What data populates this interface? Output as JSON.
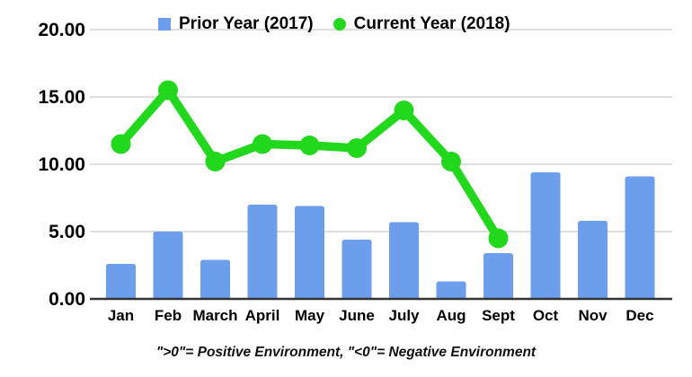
{
  "chart_data": {
    "type": "bar",
    "subtype": "combo-bar-line",
    "categories": [
      "Jan",
      "Feb",
      "March",
      "April",
      "May",
      "June",
      "July",
      "Aug",
      "Sept",
      "Oct",
      "Nov",
      "Dec"
    ],
    "series": [
      {
        "name": "Prior Year (2017)",
        "type": "bar",
        "color": "#6d9eeb",
        "values": [
          2.6,
          5.0,
          2.9,
          7.0,
          6.9,
          4.4,
          5.7,
          1.3,
          3.4,
          9.4,
          5.8,
          9.1
        ]
      },
      {
        "name": "Current Year (2018)",
        "type": "line",
        "color": "#22d81c",
        "values": [
          11.5,
          15.5,
          10.2,
          11.5,
          11.4,
          11.2,
          14.0,
          10.2,
          4.5,
          null,
          null,
          null
        ]
      }
    ],
    "title": "",
    "xlabel": "",
    "ylabel": "",
    "ylim": [
      0,
      20
    ],
    "yticks": [
      "0.00",
      "5.00",
      "10.00",
      "15.00",
      "20.00"
    ],
    "grid": true,
    "legend_position": "top",
    "caption": "\">0\"= Positive Environment, \"<0\"= Negative Environment"
  },
  "legend": {
    "items": [
      {
        "label": "Prior Year (2017)",
        "marker": "square",
        "color": "#6d9eeb"
      },
      {
        "label": "Current Year (2018)",
        "marker": "circle",
        "color": "#22d81c"
      }
    ]
  },
  "colors": {
    "gridline": "#d9d9d9",
    "axis": "#333333",
    "text": "#000000",
    "background": "#ffffff"
  }
}
